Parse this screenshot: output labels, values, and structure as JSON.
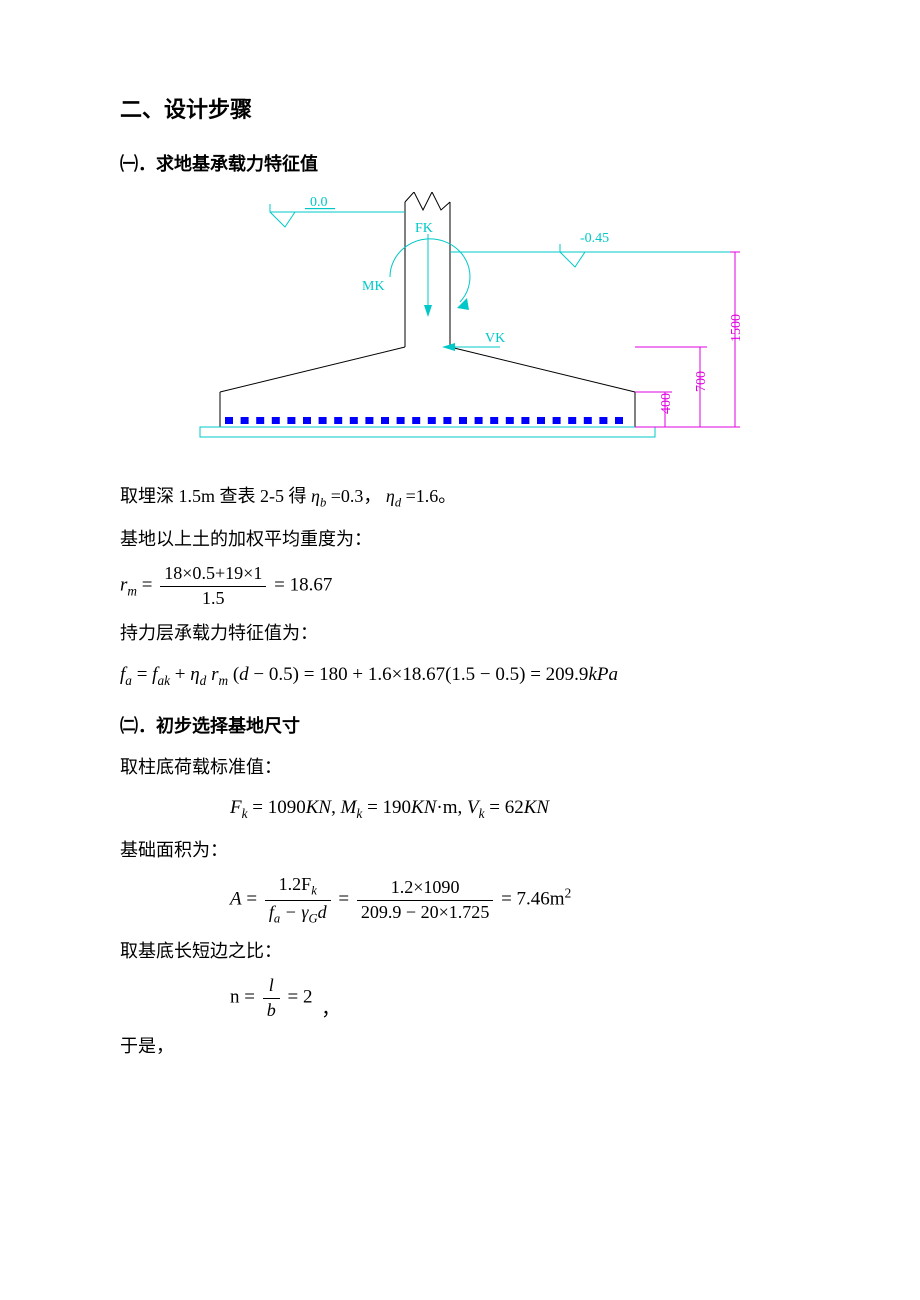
{
  "title": "二、设计步骤",
  "section1": {
    "heading": "㈠．求地基承载力特征值",
    "diagram": {
      "labels": {
        "zero": "0.0",
        "fk": "FK",
        "mk": "MK",
        "vk": "VK",
        "neg": "-0.45"
      },
      "dims": {
        "h1500": "1500",
        "h700": "700",
        "h400": "400"
      },
      "colors": {
        "text_cyan": "#00c8c8",
        "text_magenta": "#e000e0",
        "text_blue": "#0000ff",
        "line_black": "#000000",
        "line_cyan": "#00c8c8",
        "line_magenta": "#e000e0",
        "blue_fill": "#0000ff"
      }
    },
    "p1_a": "取埋深 1.5m 查表 2-5 得",
    "p1_b": "=0.3，",
    "p1_c": "=1.6。",
    "eta_b": "η",
    "eta_b_sub": "b",
    "eta_d": "η",
    "eta_d_sub": "d",
    "p2": "基地以上土的加权平均重度为：",
    "rm_formula": {
      "num": "18×0.5+19×1",
      "den": "1.5",
      "eq": "= 18.67",
      "lhs": "r",
      "lhs_sub": "m"
    },
    "p3": "持力层承载力特征值为：",
    "fa_formula": "f<sub>a</sub> = f<sub>ak</sub> + η<sub>d</sub> r<sub>m</sub> (d − 0.5) = 180 + 1.6×18.67(1.5 − 0.5) = 209.9kPa"
  },
  "section2": {
    "heading": "㈡．初步选择基地尺寸",
    "p1": "取柱底荷载标准值：",
    "fkeq": "F<sub>k</sub> = 1090KN, M<sub>k</sub> = 190KN·m, V<sub>k</sub> = 62KN",
    "p2": "基础面积为：",
    "A_formula": {
      "num1": "1.2F",
      "num1_sub": "k",
      "den1a": "f",
      "den1a_sub": "a",
      "den1_mid": " − γ",
      "den1b_sub": "G",
      "den1c": "d",
      "num2": "1.2×1090",
      "den2": "209.9 − 20×1.725",
      "rhs": "= 7.46m",
      "rhs_sup": "2"
    },
    "p3": "取基底长短边之比：",
    "n_formula": {
      "lhs": "n =",
      "num": "l",
      "den": "b",
      "rhs": "= 2"
    },
    "p4": "于是，",
    "trailing_comma": "，"
  }
}
